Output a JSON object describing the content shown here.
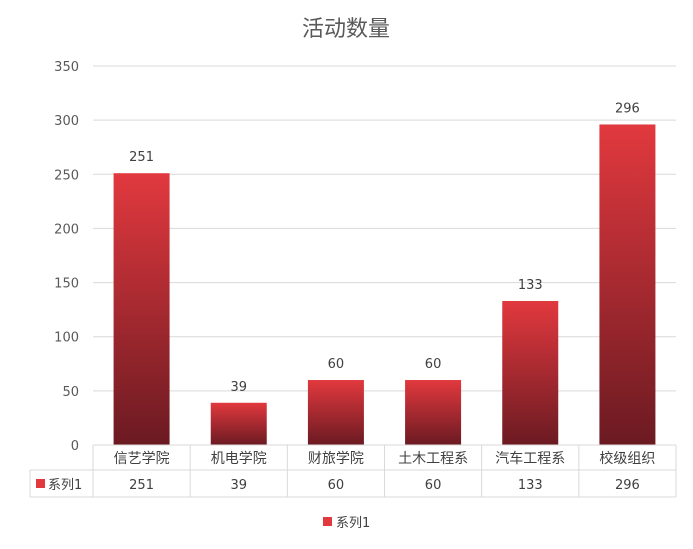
{
  "chart_data": {
    "type": "bar",
    "title": "活动数量",
    "categories": [
      "信艺学院",
      "机电学院",
      "财旅学院",
      "土木工程系",
      "汽车工程系",
      "校级组织"
    ],
    "series": [
      {
        "name": "系列1",
        "values": [
          251,
          39,
          60,
          60,
          133,
          296
        ]
      }
    ],
    "ylim": [
      0,
      350
    ],
    "yticks": [
      0,
      50,
      100,
      150,
      200,
      250,
      300,
      350
    ],
    "xlabel": "",
    "ylabel": "",
    "grid": true,
    "legend": "bottom",
    "data_table": true,
    "colors": {
      "bar_top": "#e1393e",
      "bar_bottom": "#6b1a22",
      "grid": "#d9d9d9",
      "text": "#595959"
    }
  }
}
